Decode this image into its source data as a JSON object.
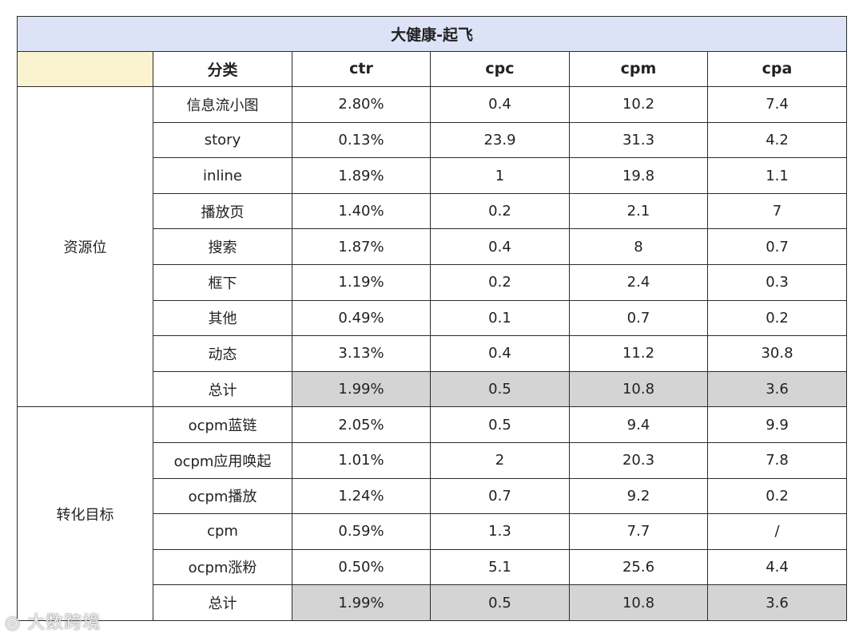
{
  "title": "大健康-起飞",
  "headers": [
    "分类",
    "ctr",
    "cpc",
    "cpm",
    "cpa"
  ],
  "groups": [
    {
      "label": "资源位",
      "rows": [
        {
          "name": "信息流小图",
          "ctr": "2.80%",
          "cpc": "0.4",
          "cpm": "10.2",
          "cpa": "7.4"
        },
        {
          "name": "story",
          "ctr": "0.13%",
          "cpc": "23.9",
          "cpm": "31.3",
          "cpa": "4.2"
        },
        {
          "name": "inline",
          "ctr": "1.89%",
          "cpc": "1",
          "cpm": "19.8",
          "cpa": "1.1"
        },
        {
          "name": "播放页",
          "ctr": "1.40%",
          "cpc": "0.2",
          "cpm": "2.1",
          "cpa": "7"
        },
        {
          "name": "搜索",
          "ctr": "1.87%",
          "cpc": "0.4",
          "cpm": "8",
          "cpa": "0.7"
        },
        {
          "name": "框下",
          "ctr": "1.19%",
          "cpc": "0.2",
          "cpm": "2.4",
          "cpa": "0.3"
        },
        {
          "name": "其他",
          "ctr": "0.49%",
          "cpc": "0.1",
          "cpm": "0.7",
          "cpa": "0.2"
        },
        {
          "name": "动态",
          "ctr": "3.13%",
          "cpc": "0.4",
          "cpm": "11.2",
          "cpa": "30.8"
        },
        {
          "name": "总计",
          "ctr": "1.99%",
          "cpc": "0.5",
          "cpm": "10.8",
          "cpa": "3.6"
        }
      ]
    },
    {
      "label": "转化目标",
      "rows": [
        {
          "name": "ocpm蓝链",
          "ctr": "2.05%",
          "cpc": "0.5",
          "cpm": "9.4",
          "cpa": "9.9"
        },
        {
          "name": "ocpm应用唤起",
          "ctr": "1.01%",
          "cpc": "2",
          "cpm": "20.3",
          "cpa": "7.8"
        },
        {
          "name": "ocpm播放",
          "ctr": "1.24%",
          "cpc": "0.7",
          "cpm": "9.2",
          "cpa": "0.2"
        },
        {
          "name": "cpm",
          "ctr": "0.59%",
          "cpc": "1.3",
          "cpm": "7.7",
          "cpa": "/"
        },
        {
          "name": "ocpm涨粉",
          "ctr": "0.50%",
          "cpc": "5.1",
          "cpm": "25.6",
          "cpa": "4.4"
        },
        {
          "name": "总计",
          "ctr": "1.99%",
          "cpc": "0.5",
          "cpm": "10.8",
          "cpa": "3.6"
        }
      ]
    }
  ],
  "watermark": "大数跨境",
  "colors": {
    "title_bg": "#dde3f7",
    "group_bg": "#fbf2cf",
    "total_bg": "#d4d4d4",
    "border": "#2b2b2b"
  }
}
